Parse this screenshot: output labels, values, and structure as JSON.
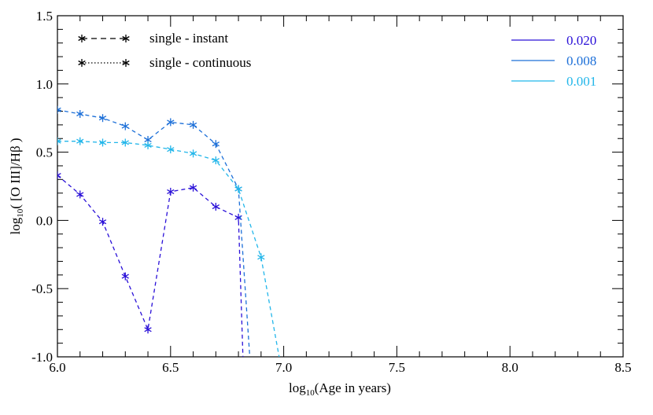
{
  "chart_data": {
    "type": "line",
    "xlabel_prefix": "log",
    "xlabel_sub": "10",
    "xlabel_rest": "(Age in years)",
    "ylabel_prefix": "log",
    "ylabel_sub": "10",
    "ylabel_rest": "( [O III]/Hβ )",
    "xlim": [
      6.0,
      8.5
    ],
    "ylim": [
      -1.0,
      1.5
    ],
    "x_ticks": [
      6.0,
      6.5,
      7.0,
      7.5,
      8.0,
      8.5
    ],
    "x_tick_labels": [
      "6.0",
      "6.5",
      "7.0",
      "7.5",
      "8.0",
      "8.5"
    ],
    "y_ticks": [
      -1.0,
      -0.5,
      0.0,
      0.5,
      1.0,
      1.5
    ],
    "y_tick_labels": [
      "-1.0",
      "-0.5",
      "0.0",
      "0.5",
      "1.0",
      "1.5"
    ],
    "grid": false,
    "style_legend": [
      {
        "label": "single - instant",
        "dash": "dashed"
      },
      {
        "label": "single - continuous",
        "dash": "dotted"
      }
    ],
    "series": [
      {
        "name": "0.020",
        "color": "#2a10d8",
        "x": [
          6.0,
          6.1,
          6.2,
          6.3,
          6.4,
          6.5,
          6.6,
          6.7,
          6.8,
          6.82
        ],
        "y": [
          0.33,
          0.19,
          -0.01,
          -0.41,
          -0.8,
          0.21,
          0.24,
          0.1,
          0.02,
          -1.0
        ],
        "markers": [
          true,
          true,
          true,
          true,
          true,
          true,
          true,
          true,
          true,
          false
        ]
      },
      {
        "name": "0.008",
        "color": "#1c6fd8",
        "x": [
          6.0,
          6.1,
          6.2,
          6.3,
          6.4,
          6.5,
          6.6,
          6.7,
          6.8,
          6.85
        ],
        "y": [
          0.81,
          0.78,
          0.75,
          0.69,
          0.59,
          0.72,
          0.7,
          0.56,
          0.23,
          -1.0
        ],
        "markers": [
          true,
          true,
          true,
          true,
          true,
          true,
          true,
          true,
          true,
          false
        ]
      },
      {
        "name": "0.001",
        "color": "#22b6ea",
        "x": [
          6.0,
          6.1,
          6.2,
          6.3,
          6.4,
          6.5,
          6.6,
          6.7,
          6.8,
          6.9,
          6.98
        ],
        "y": [
          0.58,
          0.58,
          0.57,
          0.57,
          0.55,
          0.52,
          0.49,
          0.44,
          0.23,
          -0.27,
          -1.0
        ],
        "markers": [
          true,
          true,
          true,
          true,
          true,
          true,
          true,
          true,
          true,
          true,
          false
        ]
      }
    ]
  }
}
